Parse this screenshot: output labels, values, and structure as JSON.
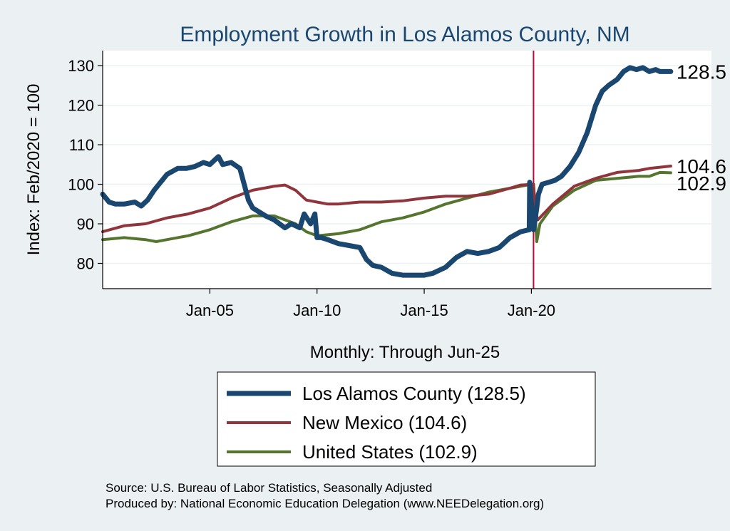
{
  "chart_data": {
    "type": "line",
    "title": "Employment Growth in Los Alamos  County, NM",
    "xlabel": "Monthly: Through Jun-25",
    "ylabel": "Index: Feb/2020 = 100",
    "xlim": [
      2000.0,
      2028.4
    ],
    "ylim": [
      73.6,
      133.8
    ],
    "yticks": [
      80,
      90,
      100,
      110,
      120,
      130
    ],
    "xticks": [
      {
        "value": 2005.0,
        "label": "Jan-05"
      },
      {
        "value": 2010.0,
        "label": "Jan-10"
      },
      {
        "value": 2015.0,
        "label": "Jan-15"
      },
      {
        "value": 2020.0,
        "label": "Jan-20"
      }
    ],
    "reference_line": {
      "x": 2020.1,
      "color": "#c10534"
    },
    "series": [
      {
        "name": "Los Alamos  County",
        "legend": "Los Alamos  County (128.5)",
        "end_label": "128.5",
        "color": "#1a476f",
        "width": 7,
        "x": [
          2000.0,
          2000.3,
          2000.6,
          2001.0,
          2001.5,
          2001.8,
          2002.1,
          2002.4,
          2003.0,
          2003.5,
          2003.9,
          2004.3,
          2004.7,
          2005.0,
          2005.2,
          2005.4,
          2005.6,
          2006.0,
          2006.4,
          2006.8,
          2007.0,
          2007.3,
          2007.6,
          2008.0,
          2008.5,
          2008.8,
          2009.2,
          2009.4,
          2009.7,
          2009.9,
          2010.0,
          2010.2,
          2010.5,
          2011.0,
          2011.5,
          2012.0,
          2012.3,
          2012.6,
          2013.0,
          2013.5,
          2014.0,
          2014.5,
          2015.0,
          2015.4,
          2016.0,
          2016.5,
          2017.0,
          2017.5,
          2018.0,
          2018.5,
          2019.0,
          2019.5,
          2019.9,
          2019.92,
          2020.1,
          2020.2,
          2020.25,
          2020.33,
          2020.5,
          2020.8,
          2021.1,
          2021.4,
          2021.8,
          2022.2,
          2022.6,
          2023.0,
          2023.3,
          2023.6,
          2024.0,
          2024.3,
          2024.6,
          2024.9,
          2025.2,
          2025.5,
          2025.8,
          2026.0,
          2026.2,
          2026.5
        ],
        "values": [
          97.5,
          95.5,
          95.0,
          95.0,
          95.5,
          94.5,
          96.0,
          98.5,
          102.5,
          104.0,
          104.0,
          104.5,
          105.5,
          105.0,
          106.0,
          107.0,
          105.0,
          105.5,
          104.0,
          96.0,
          94.0,
          93.0,
          92.0,
          91.0,
          89.0,
          90.0,
          89.0,
          92.5,
          90.0,
          92.5,
          86.5,
          86.5,
          86.0,
          85.0,
          84.5,
          84.0,
          81.0,
          79.5,
          79.0,
          77.5,
          77.0,
          77.0,
          77.0,
          77.5,
          79.0,
          81.5,
          83.0,
          82.5,
          83.0,
          84.0,
          86.5,
          88.0,
          88.5,
          100.5,
          88.5,
          92.0,
          94.0,
          97.5,
          100.0,
          100.5,
          101.0,
          102.0,
          104.5,
          108.0,
          113.0,
          120.0,
          123.5,
          125.0,
          126.5,
          128.5,
          129.5,
          129.0,
          129.5,
          128.5,
          129.0,
          128.5,
          128.5,
          128.5
        ]
      },
      {
        "name": "New Mexico",
        "legend": "New Mexico (104.6)",
        "end_label": "104.6",
        "color": "#90353b",
        "width": 4,
        "x": [
          2000.0,
          2001.0,
          2002.0,
          2003.0,
          2004.0,
          2005.0,
          2006.0,
          2007.0,
          2008.0,
          2008.5,
          2009.0,
          2009.5,
          2010.0,
          2010.5,
          2011.0,
          2012.0,
          2013.0,
          2014.0,
          2015.0,
          2016.0,
          2017.0,
          2018.0,
          2019.0,
          2019.5,
          2020.1,
          2020.2,
          2020.3,
          2021.0,
          2022.0,
          2023.0,
          2024.0,
          2025.0,
          2025.5,
          2026.5
        ],
        "values": [
          88.0,
          89.5,
          90.0,
          91.5,
          92.5,
          94.0,
          96.5,
          98.5,
          99.5,
          99.8,
          98.5,
          96.0,
          95.5,
          95.0,
          95.0,
          95.5,
          95.5,
          95.8,
          96.5,
          97.0,
          97.0,
          97.5,
          99.0,
          99.8,
          100.0,
          93.0,
          91.0,
          95.0,
          99.5,
          101.5,
          103.0,
          103.5,
          104.0,
          104.6
        ]
      },
      {
        "name": "United States",
        "legend": "United States (102.9)",
        "end_label": "102.9",
        "color": "#55752f",
        "width": 4,
        "x": [
          2000.0,
          2001.0,
          2002.0,
          2002.5,
          2003.0,
          2004.0,
          2005.0,
          2006.0,
          2007.0,
          2008.0,
          2009.0,
          2009.5,
          2010.0,
          2011.0,
          2012.0,
          2013.0,
          2014.0,
          2015.0,
          2016.0,
          2017.0,
          2018.0,
          2019.0,
          2020.0,
          2020.1,
          2020.25,
          2020.4,
          2021.0,
          2022.0,
          2023.0,
          2024.0,
          2025.0,
          2025.5,
          2026.0,
          2026.5
        ],
        "values": [
          86.0,
          86.5,
          86.0,
          85.5,
          86.0,
          87.0,
          88.5,
          90.5,
          92.0,
          92.0,
          90.0,
          88.0,
          87.0,
          87.5,
          88.5,
          90.5,
          91.5,
          93.0,
          95.0,
          96.5,
          98.0,
          99.0,
          100.0,
          100.0,
          85.5,
          90.0,
          94.5,
          98.5,
          101.0,
          101.5,
          102.0,
          102.0,
          103.0,
          102.9
        ]
      }
    ],
    "legend_position": "bottom-center"
  },
  "source_note": "Source: U.S. Bureau of Labor Statistics, Seasonally Adjusted",
  "produced_note": "Produced by: National Economic Education Delegation (www.NEEDelegation.org)"
}
